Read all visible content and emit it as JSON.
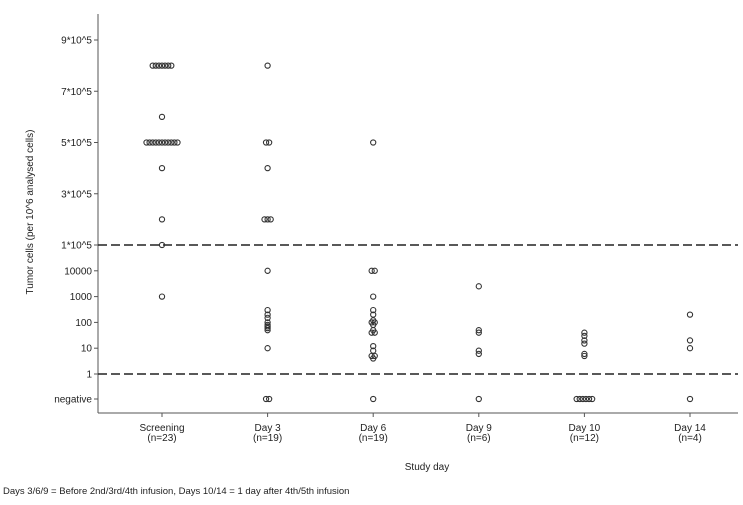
{
  "chart_data": {
    "type": "scatter",
    "title": "",
    "xlabel": "Study day",
    "ylabel": "Tumor cells (per 10^6 analysed cells)",
    "grid": false,
    "legend": "none",
    "categories": [
      {
        "label": "Screening",
        "n": "(n=23)"
      },
      {
        "label": "Day 3",
        "n": "(n=19)"
      },
      {
        "label": "Day 6",
        "n": "(n=19)"
      },
      {
        "label": "Day 9",
        "n": "(n=6)"
      },
      {
        "label": "Day 10",
        "n": "(n=12)"
      },
      {
        "label": "Day 14",
        "n": "(n=4)"
      }
    ],
    "y_ticks": [
      "negative",
      "1",
      "10",
      "100",
      "1000",
      "10000",
      "1*10^5",
      "3*10^5",
      "5*10^5",
      "7*10^5",
      "9*10^5"
    ],
    "y_scale": "broken: 'negative' category, log scale from 1 to 1*10^5, linear scale from 1*10^5 to 9*10^5",
    "reference_lines": [
      {
        "value": 1,
        "style": "dashed"
      },
      {
        "value": 100000,
        "style": "dashed"
      }
    ],
    "points": [
      {
        "day": "Screening",
        "values": [
          800000,
          800000,
          800000,
          800000,
          800000,
          800000,
          800000,
          600000,
          500000,
          500000,
          500000,
          500000,
          500000,
          500000,
          500000,
          500000,
          500000,
          500000,
          500000,
          400000,
          200000,
          100000,
          1000
        ]
      },
      {
        "day": "Day 3",
        "values": [
          800000,
          500000,
          500000,
          400000,
          200000,
          200000,
          200000,
          10000,
          300,
          200,
          150,
          100,
          80,
          70,
          60,
          50,
          10,
          "negative",
          "negative"
        ]
      },
      {
        "day": "Day 6",
        "values": [
          500000,
          10000,
          10000,
          1000,
          300,
          200,
          120,
          100,
          100,
          80,
          50,
          40,
          40,
          12,
          8,
          5,
          5,
          4,
          "negative"
        ]
      },
      {
        "day": "Day 9",
        "values": [
          2500,
          50,
          40,
          8,
          6,
          "negative"
        ]
      },
      {
        "day": "Day 10",
        "values": [
          40,
          30,
          20,
          15,
          6,
          5,
          "negative",
          "negative",
          "negative",
          "negative",
          "negative",
          "negative"
        ]
      },
      {
        "day": "Day 14",
        "values": [
          200,
          20,
          10,
          "negative"
        ]
      }
    ]
  },
  "footnote": "Days 3/6/9 = Before 2nd/3rd/4th infusion,  Days 10/14 = 1 day after 4th/5th infusion"
}
